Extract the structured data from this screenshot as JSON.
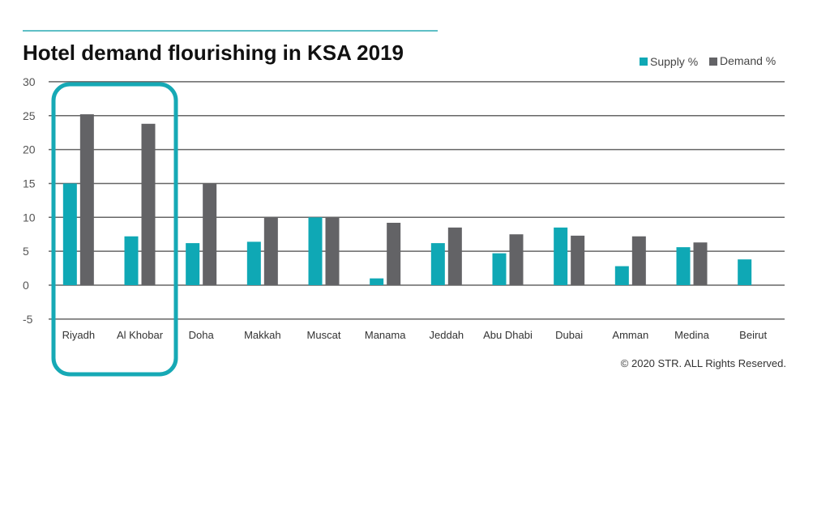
{
  "chart_data": {
    "type": "bar",
    "title": "Hotel demand flourishing in KSA 2019",
    "xlabel": "",
    "ylabel": "",
    "ylim": [
      -5,
      30
    ],
    "yticks": [
      30,
      25,
      20,
      15,
      10,
      5,
      0,
      -5
    ],
    "grid": true,
    "legend_position": "top-right",
    "categories": [
      "Riyadh",
      "Al Khobar",
      "Doha",
      "Makkah",
      "Muscat",
      "Manama",
      "Jeddah",
      "Abu Dhabi",
      "Dubai",
      "Amman",
      "Medina",
      "Beirut"
    ],
    "series": [
      {
        "name": "Supply %",
        "color": "#0fa8b5",
        "values": [
          15.0,
          7.2,
          6.2,
          6.4,
          10.0,
          1.0,
          6.2,
          4.7,
          8.5,
          2.8,
          5.6,
          3.8
        ]
      },
      {
        "name": "Demand %",
        "color": "#636366",
        "values": [
          25.2,
          23.8,
          15.0,
          10.0,
          10.0,
          9.2,
          8.5,
          7.5,
          7.3,
          7.2,
          6.3,
          0
        ]
      }
    ],
    "highlighted_categories": [
      "Riyadh",
      "Al Khobar"
    ],
    "highlight_color": "#16a9b5",
    "copyright": "© 2020 STR. ALL Rights Reserved."
  }
}
